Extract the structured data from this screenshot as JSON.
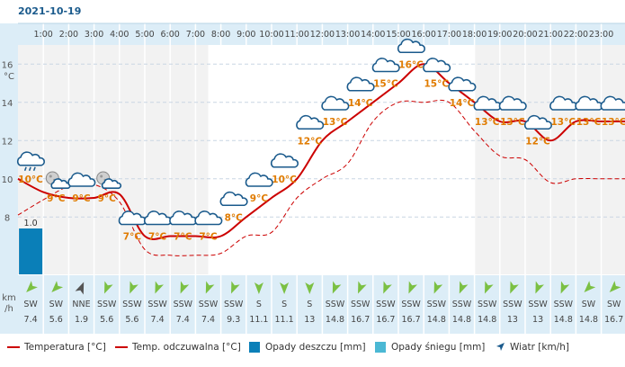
{
  "date": "2021-10-19",
  "colors": {
    "temp_line": "#cc0000",
    "rain_bar": "#0a7fb8",
    "snow_bar": "#4bb8d4",
    "temp_label": "#e07b00",
    "accent": "#1a5a8c",
    "panel_bg": "#dcedf7",
    "wind_arrow": "#7bc043"
  },
  "units": {
    "temp_axis": "°C",
    "wind_axis_line1": "km",
    "wind_axis_line2": "/h"
  },
  "legend": {
    "temperature": "Temperatura [°C]",
    "feels_like": "Temp. odczuwalna [°C]",
    "rain": "Opady deszczu [mm]",
    "snow": "Opady śniegu [mm]",
    "wind": "Wiatr [km/h]"
  },
  "chart_data": {
    "type": "line",
    "title": "2021-10-19",
    "ylabel": "°C",
    "ylim": [
      5,
      17
    ],
    "y_ticks": [
      8,
      10,
      12,
      14,
      16
    ],
    "hours": [
      "1:00",
      "2:00",
      "3:00",
      "4:00",
      "5:00",
      "6:00",
      "7:00",
      "8:00",
      "9:00",
      "10:00",
      "11:00",
      "12:00",
      "13:00",
      "14:00",
      "15:00",
      "16:00",
      "17:00",
      "18:00",
      "19:00",
      "20:00",
      "21:00",
      "22:00",
      "23:00"
    ],
    "series": [
      {
        "name": "Temperatura",
        "x": [
          0,
          1,
          2,
          3,
          4,
          5,
          6,
          7,
          8,
          9,
          10,
          11,
          12,
          13,
          14,
          15,
          16,
          17,
          18,
          19,
          20,
          21,
          22,
          23,
          24
        ],
        "values": [
          10,
          9.3,
          9,
          9,
          9.2,
          7,
          7,
          7,
          7,
          8,
          9,
          10,
          12,
          13,
          14,
          15,
          16,
          15,
          14,
          13,
          13,
          12,
          13,
          13,
          13
        ]
      },
      {
        "name": "Temp. odczuwalna",
        "x": [
          0,
          1,
          2,
          3,
          4,
          5,
          6,
          7,
          8,
          9,
          10,
          11,
          12,
          13,
          14,
          15,
          16,
          17,
          18,
          19,
          20,
          21,
          22,
          23,
          24
        ],
        "values": [
          8.1,
          8.9,
          9.6,
          9.7,
          8.8,
          6.3,
          6,
          6,
          6.1,
          7,
          7.2,
          9,
          10,
          10.8,
          13,
          14,
          14,
          14,
          12.5,
          11.2,
          11,
          9.8,
          10,
          10,
          10
        ]
      }
    ],
    "icon_labels": [
      {
        "x": 0.5,
        "value": 10,
        "label": "10°C"
      },
      {
        "x": 1.5,
        "value": 9,
        "label": "9°C"
      },
      {
        "x": 2.5,
        "value": 9,
        "label": "9°C"
      },
      {
        "x": 3.5,
        "value": 9,
        "label": "9°C"
      },
      {
        "x": 4.5,
        "value": 7,
        "label": "7°C"
      },
      {
        "x": 5.5,
        "value": 7,
        "label": "7°C"
      },
      {
        "x": 6.5,
        "value": 7,
        "label": "7°C"
      },
      {
        "x": 7.5,
        "value": 7,
        "label": "7°C"
      },
      {
        "x": 8.5,
        "value": 8,
        "label": "8°C"
      },
      {
        "x": 9.5,
        "value": 9,
        "label": "9°C"
      },
      {
        "x": 10.5,
        "value": 10,
        "label": "10°C"
      },
      {
        "x": 11.5,
        "value": 12,
        "label": "12°C"
      },
      {
        "x": 12.5,
        "value": 13,
        "label": "13°C"
      },
      {
        "x": 13.5,
        "value": 14,
        "label": "14°C"
      },
      {
        "x": 14.5,
        "value": 15,
        "label": "15°C"
      },
      {
        "x": 15.5,
        "value": 16,
        "label": "16°C"
      },
      {
        "x": 16.5,
        "value": 15,
        "label": "15°C"
      },
      {
        "x": 17.5,
        "value": 14,
        "label": "14°C"
      },
      {
        "x": 18.5,
        "value": 13,
        "label": "13°C"
      },
      {
        "x": 19.5,
        "value": 13,
        "label": "13°C"
      },
      {
        "x": 20.5,
        "value": 12,
        "label": "12°C"
      },
      {
        "x": 21.5,
        "value": 13,
        "label": "13°C"
      },
      {
        "x": 22.5,
        "value": 13,
        "label": "13°C"
      },
      {
        "x": 23.5,
        "value": 13,
        "label": "13°C"
      }
    ],
    "icon_types": [
      "cloud-rain",
      "partly-cloudy-night",
      "cloud",
      "partly-cloudy-night",
      "cloud",
      "cloud",
      "cloud",
      "cloud",
      "cloud",
      "cloud",
      "cloud",
      "cloud",
      "cloud",
      "cloud",
      "cloud",
      "cloud",
      "cloud",
      "cloud",
      "cloud",
      "cloud",
      "cloud",
      "cloud",
      "cloud",
      "cloud"
    ],
    "precipitation": [
      {
        "x": 0.5,
        "value": 1.0,
        "label": "1.0",
        "type": "rain"
      }
    ],
    "precip_scale_max": 2,
    "wind": {
      "directions": [
        "SW",
        "SW",
        "NNE",
        "SSW",
        "SSW",
        "SSW",
        "SSW",
        "SSW",
        "SSW",
        "S",
        "S",
        "S",
        "SSW",
        "SSW",
        "SSW",
        "SSW",
        "SSW",
        "SSW",
        "SSW",
        "SSW",
        "SSW",
        "SSW",
        "SW",
        "SW"
      ],
      "speeds": [
        "7.4",
        "5.6",
        "1.9",
        "5.6",
        "5.6",
        "7.4",
        "7.4",
        "7.4",
        "9.3",
        "11.1",
        "11.1",
        "13",
        "14.8",
        "16.7",
        "16.7",
        "16.7",
        "14.8",
        "14.8",
        "14.8",
        "13",
        "13",
        "14.8",
        "14.8",
        "16.7"
      ]
    },
    "night_shading": [
      [
        0,
        7.5
      ],
      [
        18,
        24
      ]
    ]
  }
}
